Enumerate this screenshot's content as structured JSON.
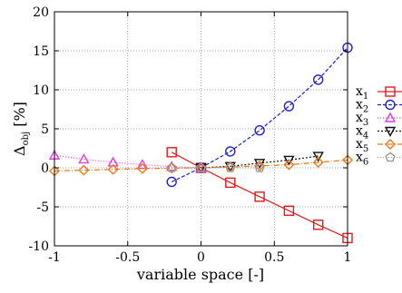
{
  "chart_data": {
    "type": "line",
    "xlabel": "variable space [-]",
    "ylabel": {
      "base": "Δ",
      "sub": "obj",
      "rest": " [%]"
    },
    "xlim": [
      -1,
      1
    ],
    "ylim": [
      -10,
      20
    ],
    "xticks": [
      -1,
      -0.5,
      0,
      0.5,
      1
    ],
    "xtick_labels": [
      "-1",
      "-0.5",
      "0",
      "0.5",
      "1"
    ],
    "yticks": [
      -10,
      -5,
      0,
      5,
      10,
      15,
      20
    ],
    "ytick_labels": [
      "-10",
      "-5",
      "0",
      "5",
      "10",
      "15",
      "20"
    ],
    "grid": true,
    "legend_position": "right",
    "series": [
      {
        "name": "x",
        "sub": "1",
        "color": "#e41a1c",
        "marker": "square",
        "dash": "solid",
        "x": [
          -0.2,
          0,
          0.2,
          0.4,
          0.6,
          0.8,
          1.0
        ],
        "y": [
          2.0,
          0,
          -1.9,
          -3.7,
          -5.5,
          -7.3,
          -9.0
        ]
      },
      {
        "name": "x",
        "sub": "2",
        "color": "#1f1fd6",
        "marker": "circle",
        "dash": "4,2",
        "x": [
          -0.2,
          0,
          0.2,
          0.4,
          0.6,
          0.8,
          1.0
        ],
        "y": [
          -1.8,
          0,
          2.1,
          4.8,
          7.9,
          11.3,
          15.4
        ]
      },
      {
        "name": "x",
        "sub": "3",
        "color": "#e040e0",
        "marker": "triangle-up",
        "dash": "1,2",
        "x": [
          -1.0,
          -0.8,
          -0.6,
          -0.4,
          -0.2,
          0
        ],
        "y": [
          1.6,
          1.1,
          0.7,
          0.4,
          0.15,
          0
        ]
      },
      {
        "name": "x",
        "sub": "4",
        "color": "#111111",
        "marker": "triangle-down",
        "dash": "2,2",
        "x": [
          0,
          0.2,
          0.4,
          0.6,
          0.8
        ],
        "y": [
          0,
          0.2,
          0.6,
          1.0,
          1.5
        ]
      },
      {
        "name": "x",
        "sub": "5",
        "color": "#f07818",
        "marker": "diamond",
        "dash": "6,2,1,2",
        "x": [
          -1.0,
          -0.8,
          -0.6,
          -0.4,
          -0.2,
          0,
          0.2,
          0.4,
          0.6,
          0.8,
          1.0
        ],
        "y": [
          -0.4,
          -0.3,
          -0.2,
          -0.1,
          -0.05,
          0,
          0.1,
          0.25,
          0.4,
          0.7,
          1.0
        ]
      },
      {
        "name": "x",
        "sub": "6",
        "color": "#999999",
        "marker": "pentagon",
        "dash": "1,2",
        "x": [
          -0.2,
          0,
          0.2,
          0.4
        ],
        "y": [
          0,
          0,
          0,
          0
        ]
      }
    ]
  }
}
